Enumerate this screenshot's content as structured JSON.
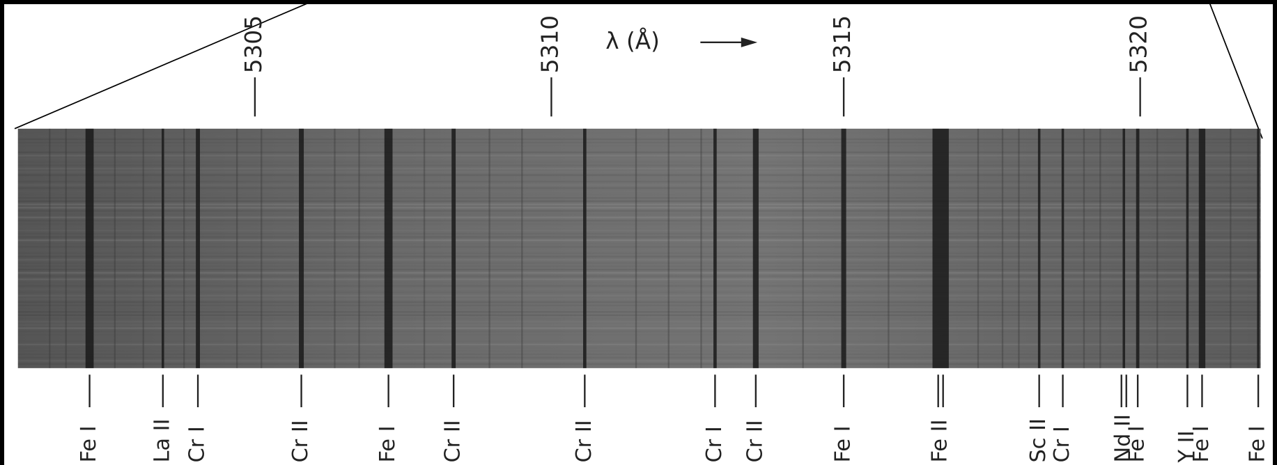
{
  "axis_label": "λ (Å)",
  "wavelength_ticks": [
    "5305",
    "5310",
    "5315",
    "5320"
  ],
  "lines": [
    {
      "label": "Fe I"
    },
    {
      "label": "La II"
    },
    {
      "label": "Cr I"
    },
    {
      "label": "Cr II"
    },
    {
      "label": "Fe I"
    },
    {
      "label": "Cr II"
    },
    {
      "label": "Cr II"
    },
    {
      "label": "Cr I"
    },
    {
      "label": "Cr II"
    },
    {
      "label": "Fe I"
    },
    {
      "label": "Fe II"
    },
    {
      "label": "Sc II"
    },
    {
      "label": "Cr I"
    },
    {
      "label": "Nd II"
    },
    {
      "label": "Fe I"
    },
    {
      "label": "Y II"
    },
    {
      "label": "Fe I"
    },
    {
      "label": "Fe I"
    }
  ]
}
